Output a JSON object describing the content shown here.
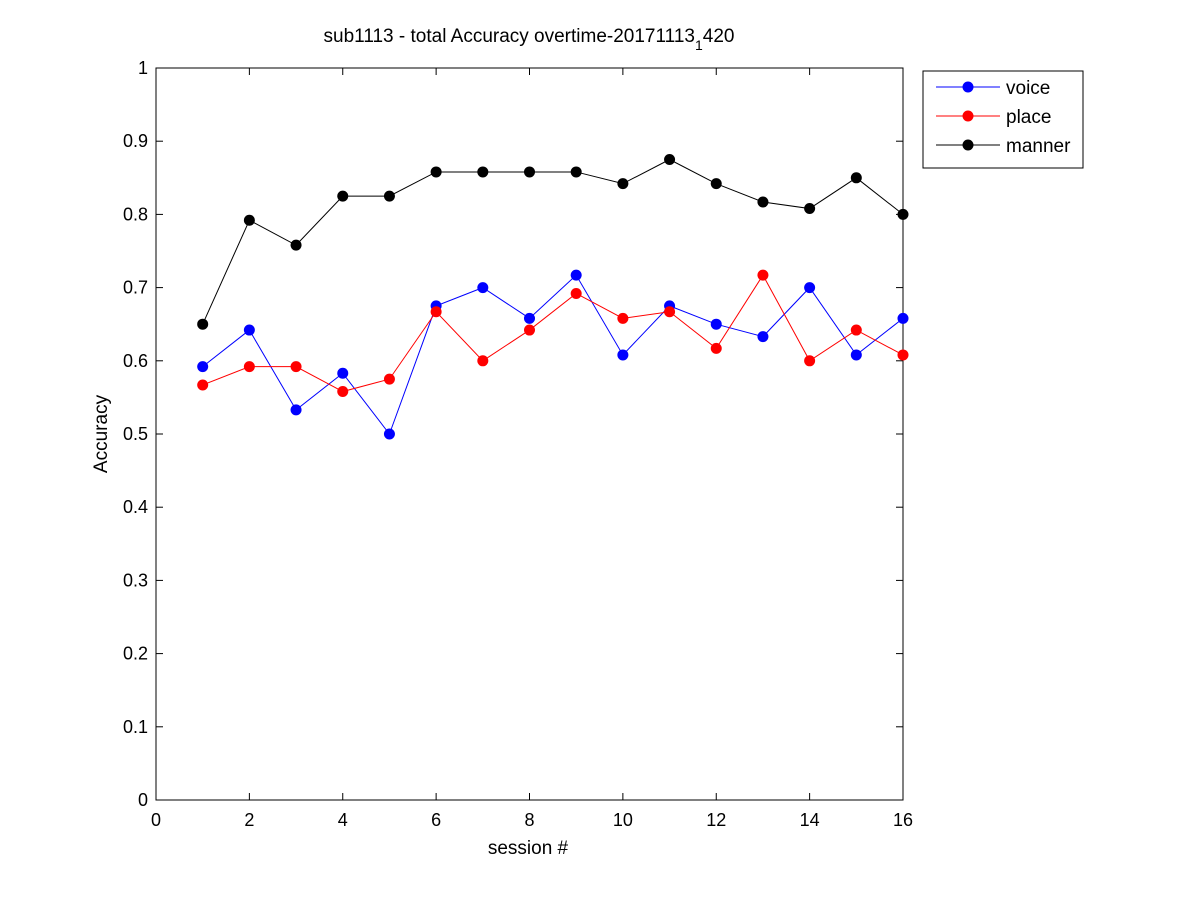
{
  "chart_data": {
    "type": "line",
    "title": "sub1113 - total Accuracy overtime-20171113",
    "title_subscript": "1",
    "title_suffix": "420",
    "xlabel": "session #",
    "ylabel": "Accuracy",
    "xlim": [
      0,
      16
    ],
    "ylim": [
      0,
      1
    ],
    "xticks": [
      0,
      2,
      4,
      6,
      8,
      10,
      12,
      14,
      16
    ],
    "yticks": [
      0,
      0.1,
      0.2,
      0.3,
      0.4,
      0.5,
      0.6,
      0.7,
      0.8,
      0.9,
      1
    ],
    "grid": false,
    "legend_position": "top-right",
    "x": [
      1,
      2,
      3,
      4,
      5,
      6,
      7,
      8,
      9,
      10,
      11,
      12,
      13,
      14,
      15,
      16
    ],
    "series": [
      {
        "name": "voice",
        "color": "#0000ff",
        "values": [
          0.592,
          0.642,
          0.533,
          0.583,
          0.5,
          0.675,
          0.7,
          0.658,
          0.717,
          0.608,
          0.675,
          0.65,
          0.633,
          0.7,
          0.608,
          0.658
        ]
      },
      {
        "name": "place",
        "color": "#ff0000",
        "values": [
          0.567,
          0.592,
          0.592,
          0.558,
          0.575,
          0.667,
          0.6,
          0.642,
          0.692,
          0.658,
          0.667,
          0.617,
          0.717,
          0.6,
          0.642,
          0.608
        ]
      },
      {
        "name": "manner",
        "color": "#000000",
        "values": [
          0.65,
          0.792,
          0.758,
          0.825,
          0.825,
          0.858,
          0.858,
          0.858,
          0.858,
          0.842,
          0.875,
          0.842,
          0.817,
          0.808,
          0.85,
          0.8
        ]
      }
    ]
  }
}
